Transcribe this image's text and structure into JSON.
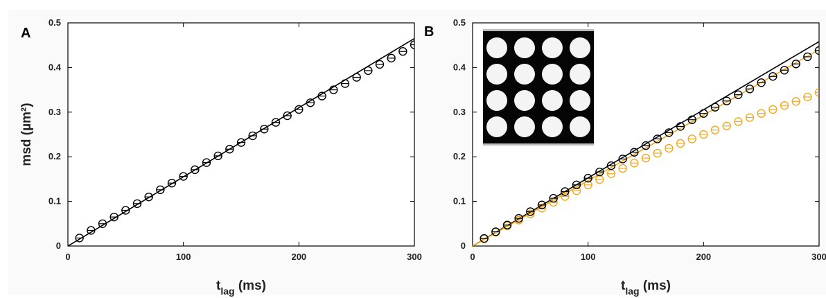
{
  "chart_data": [
    {
      "type": "scatter",
      "panel_label": "A",
      "xlabel_main": "t",
      "xlabel_sub": "lag",
      "xlabel_unit": " (ms)",
      "ylabel": "msd (µm²)",
      "xlim": [
        0,
        300
      ],
      "ylim": [
        0,
        0.5
      ],
      "xticks": [
        0,
        100,
        200,
        300
      ],
      "yticks": [
        0,
        0.1,
        0.2,
        0.3,
        0.4,
        0.5
      ],
      "series": [
        {
          "color": "#000000",
          "marker": "circle-errorbar",
          "x": [
            10,
            20,
            30,
            40,
            50,
            60,
            70,
            80,
            90,
            100,
            110,
            120,
            130,
            140,
            150,
            160,
            170,
            180,
            190,
            200,
            210,
            220,
            230,
            240,
            250,
            260,
            270,
            280,
            290,
            300
          ],
          "y": [
            0.018,
            0.035,
            0.05,
            0.065,
            0.08,
            0.095,
            0.11,
            0.126,
            0.141,
            0.156,
            0.171,
            0.187,
            0.202,
            0.217,
            0.232,
            0.247,
            0.262,
            0.277,
            0.292,
            0.306,
            0.321,
            0.336,
            0.35,
            0.364,
            0.378,
            0.393,
            0.407,
            0.421,
            0.436,
            0.451
          ]
        }
      ],
      "fit_lines": [
        {
          "color": "#000000",
          "x": [
            0,
            300
          ],
          "y": [
            0,
            0.465
          ]
        }
      ]
    },
    {
      "type": "scatter",
      "panel_label": "B",
      "xlabel_main": "t",
      "xlabel_sub": "lag",
      "xlabel_unit": " (ms)",
      "ylabel": "",
      "xlim": [
        0,
        300
      ],
      "ylim": [
        0,
        0.5
      ],
      "xticks": [
        0,
        100,
        200,
        300
      ],
      "yticks": [
        0,
        0.1,
        0.2,
        0.3,
        0.4,
        0.5
      ],
      "inset": {
        "type": "image",
        "description_icon": "bead-grid-4x4",
        "rows": 4,
        "cols": 4
      },
      "series": [
        {
          "color": "#000000",
          "marker": "circle-errorbar",
          "x": [
            10,
            20,
            30,
            40,
            50,
            60,
            70,
            80,
            90,
            100,
            110,
            120,
            130,
            140,
            150,
            160,
            170,
            180,
            190,
            200,
            210,
            220,
            230,
            240,
            250,
            260,
            270,
            280,
            290,
            300
          ],
          "y": [
            0.017,
            0.032,
            0.047,
            0.062,
            0.077,
            0.092,
            0.107,
            0.122,
            0.137,
            0.152,
            0.166,
            0.18,
            0.195,
            0.21,
            0.225,
            0.24,
            0.254,
            0.268,
            0.283,
            0.297,
            0.311,
            0.325,
            0.339,
            0.352,
            0.366,
            0.38,
            0.394,
            0.408,
            0.424,
            0.438
          ]
        },
        {
          "color": "#f2a81d",
          "marker": "circle-errorbar",
          "x": [
            10,
            20,
            30,
            40,
            50,
            60,
            70,
            80,
            90,
            100,
            110,
            120,
            130,
            140,
            150,
            160,
            170,
            180,
            190,
            200,
            210,
            220,
            230,
            240,
            250,
            260,
            270,
            280,
            290,
            300
          ],
          "y": [
            0.016,
            0.031,
            0.045,
            0.058,
            0.072,
            0.085,
            0.098,
            0.111,
            0.124,
            0.137,
            0.149,
            0.162,
            0.174,
            0.186,
            0.197,
            0.208,
            0.219,
            0.23,
            0.24,
            0.25,
            0.26,
            0.269,
            0.279,
            0.288,
            0.297,
            0.306,
            0.315,
            0.324,
            0.334,
            0.344
          ]
        }
      ],
      "fit_lines": [
        {
          "color": "#000000",
          "x": [
            0,
            300
          ],
          "y": [
            0,
            0.458
          ]
        },
        {
          "color": "#f2a81d",
          "x": [
            0,
            300
          ],
          "y": [
            0,
            0.44
          ]
        }
      ]
    }
  ]
}
